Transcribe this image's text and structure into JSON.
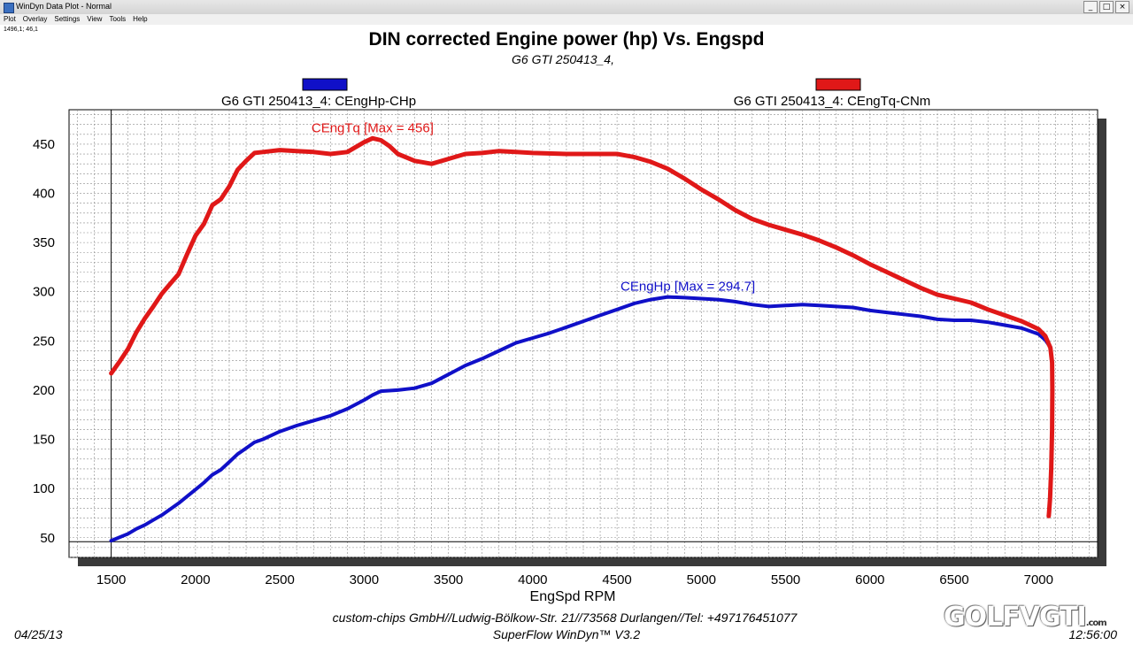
{
  "window": {
    "title": "WinDyn Data Plot - Normal",
    "coordinate_readout": "1496,1; 46,1"
  },
  "menu": [
    "Plot",
    "Overlay",
    "Settings",
    "View",
    "Tools",
    "Help"
  ],
  "footer": {
    "date": "04/25/13",
    "time": "12:56:00",
    "company": "custom-chips GmbH//Ludwig-Bölkow-Str. 21//73568 Durlangen//Tel: +497176451077",
    "software": "SuperFlow WinDyn™  V3.2",
    "watermark": "GOLF",
    "watermark_slash": "V",
    "watermark_brand": "GTI",
    "watermark_domain": ".com"
  },
  "chart_data": {
    "type": "line",
    "title": "DIN corrected Engine power (hp) Vs. Engspd",
    "subtitle": "G6 GTI 250413_4,",
    "xlabel": "EngSpd RPM",
    "ylabel": "",
    "xlim": [
      1250,
      7350
    ],
    "ylim": [
      30,
      485
    ],
    "x_ticks": [
      1500,
      2000,
      2500,
      3000,
      3500,
      4000,
      4500,
      5000,
      5500,
      6000,
      6500,
      7000
    ],
    "y_ticks": [
      50,
      100,
      150,
      200,
      250,
      300,
      350,
      400,
      450
    ],
    "grid": true,
    "legend_placement": "top",
    "series": [
      {
        "name": "G6 GTI 250413_4: CEngHp-CHp",
        "color": "#1010c8",
        "annotation": "CEngHp [Max = 294.7]",
        "annotation_at": [
          4920,
          301
        ],
        "points": [
          [
            1500,
            47
          ],
          [
            1600,
            54
          ],
          [
            1650,
            59
          ],
          [
            1700,
            63
          ],
          [
            1750,
            68
          ],
          [
            1800,
            73
          ],
          [
            1850,
            79
          ],
          [
            1900,
            85
          ],
          [
            1950,
            92
          ],
          [
            2000,
            99
          ],
          [
            2050,
            106
          ],
          [
            2100,
            114
          ],
          [
            2150,
            119
          ],
          [
            2200,
            127
          ],
          [
            2250,
            135
          ],
          [
            2300,
            141
          ],
          [
            2350,
            147
          ],
          [
            2400,
            150
          ],
          [
            2450,
            154
          ],
          [
            2500,
            158
          ],
          [
            2600,
            164
          ],
          [
            2700,
            169
          ],
          [
            2800,
            174
          ],
          [
            2900,
            181
          ],
          [
            3000,
            190
          ],
          [
            3050,
            195
          ],
          [
            3100,
            199
          ],
          [
            3200,
            200
          ],
          [
            3300,
            202
          ],
          [
            3400,
            207
          ],
          [
            3500,
            216
          ],
          [
            3600,
            225
          ],
          [
            3700,
            232
          ],
          [
            3800,
            240
          ],
          [
            3900,
            248
          ],
          [
            4000,
            253
          ],
          [
            4100,
            258
          ],
          [
            4200,
            264
          ],
          [
            4300,
            270
          ],
          [
            4400,
            276
          ],
          [
            4500,
            282
          ],
          [
            4600,
            288
          ],
          [
            4700,
            292
          ],
          [
            4800,
            294.7
          ],
          [
            4900,
            294
          ],
          [
            5000,
            293
          ],
          [
            5100,
            292
          ],
          [
            5200,
            290
          ],
          [
            5300,
            287
          ],
          [
            5400,
            285
          ],
          [
            5500,
            286
          ],
          [
            5600,
            287
          ],
          [
            5700,
            286
          ],
          [
            5800,
            285
          ],
          [
            5900,
            284
          ],
          [
            6000,
            281
          ],
          [
            6100,
            279
          ],
          [
            6200,
            277
          ],
          [
            6300,
            275
          ],
          [
            6400,
            272
          ],
          [
            6500,
            271
          ],
          [
            6600,
            271
          ],
          [
            6700,
            269
          ],
          [
            6800,
            266
          ],
          [
            6900,
            263
          ],
          [
            7000,
            257
          ],
          [
            7040,
            251
          ],
          [
            7060,
            246
          ],
          [
            7070,
            244
          ]
        ]
      },
      {
        "name": "G6 GTI 250413_4: CEngTq-CNm",
        "color": "#e01818",
        "annotation": "CEngTq [Max = 456]",
        "annotation_at": [
          3050,
          462
        ],
        "points": [
          [
            1500,
            217
          ],
          [
            1550,
            229
          ],
          [
            1600,
            242
          ],
          [
            1650,
            259
          ],
          [
            1700,
            273
          ],
          [
            1750,
            285
          ],
          [
            1800,
            298
          ],
          [
            1850,
            308
          ],
          [
            1900,
            318
          ],
          [
            1950,
            338
          ],
          [
            2000,
            357
          ],
          [
            2050,
            369
          ],
          [
            2100,
            388
          ],
          [
            2150,
            394
          ],
          [
            2200,
            407
          ],
          [
            2250,
            424
          ],
          [
            2300,
            433
          ],
          [
            2350,
            441
          ],
          [
            2400,
            442
          ],
          [
            2450,
            443
          ],
          [
            2500,
            444
          ],
          [
            2600,
            443
          ],
          [
            2700,
            442
          ],
          [
            2800,
            440
          ],
          [
            2900,
            442
          ],
          [
            3000,
            452
          ],
          [
            3050,
            456
          ],
          [
            3100,
            454
          ],
          [
            3150,
            448
          ],
          [
            3200,
            440
          ],
          [
            3300,
            433
          ],
          [
            3400,
            430
          ],
          [
            3500,
            435
          ],
          [
            3600,
            440
          ],
          [
            3700,
            441
          ],
          [
            3800,
            443
          ],
          [
            3900,
            442
          ],
          [
            4000,
            441
          ],
          [
            4200,
            440
          ],
          [
            4400,
            440
          ],
          [
            4500,
            440
          ],
          [
            4600,
            437
          ],
          [
            4700,
            432
          ],
          [
            4800,
            425
          ],
          [
            4900,
            415
          ],
          [
            5000,
            404
          ],
          [
            5100,
            394
          ],
          [
            5200,
            383
          ],
          [
            5300,
            374
          ],
          [
            5400,
            368
          ],
          [
            5500,
            363
          ],
          [
            5600,
            358
          ],
          [
            5700,
            352
          ],
          [
            5800,
            345
          ],
          [
            5900,
            337
          ],
          [
            6000,
            328
          ],
          [
            6100,
            320
          ],
          [
            6200,
            312
          ],
          [
            6300,
            304
          ],
          [
            6400,
            297
          ],
          [
            6500,
            293
          ],
          [
            6600,
            289
          ],
          [
            6700,
            282
          ],
          [
            6800,
            276
          ],
          [
            6900,
            270
          ],
          [
            6950,
            266
          ],
          [
            7000,
            262
          ],
          [
            7040,
            255
          ],
          [
            7070,
            243
          ],
          [
            7080,
            228
          ],
          [
            7082,
            200
          ],
          [
            7080,
            160
          ],
          [
            7075,
            120
          ],
          [
            7068,
            90
          ],
          [
            7062,
            75
          ],
          [
            7060,
            72
          ]
        ]
      }
    ]
  }
}
